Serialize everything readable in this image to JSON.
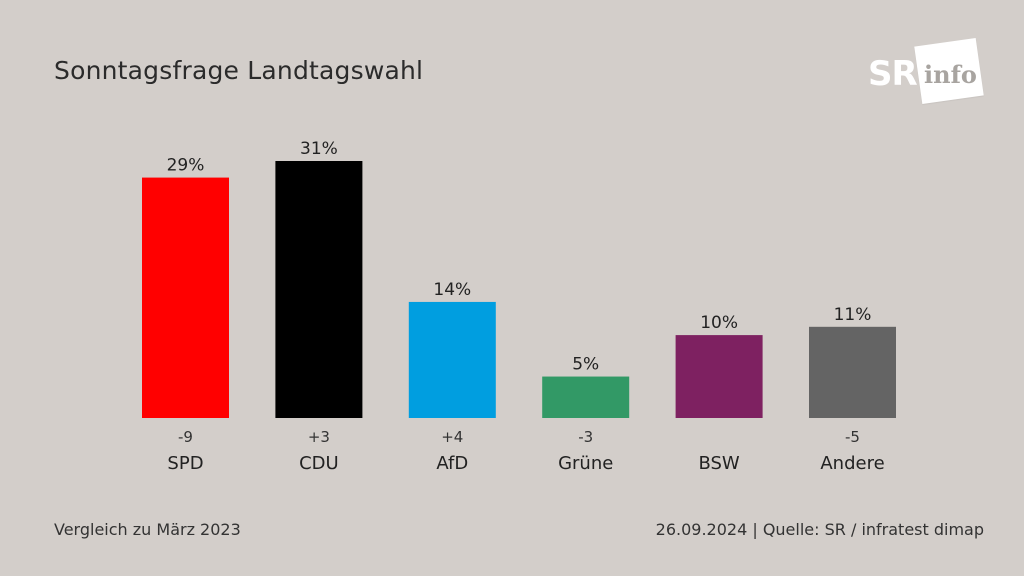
{
  "header": {
    "title": "Sonntagsfrage Landtagswahl"
  },
  "logo": {
    "sr": "SR",
    "info": "info"
  },
  "footer": {
    "left": "Vergleich zu März 2023",
    "right": "26.09.2024 | Quelle: SR / infratest dimap"
  },
  "chart_data": {
    "type": "bar",
    "title": "Sonntagsfrage Landtagswahl",
    "categories": [
      "SPD",
      "CDU",
      "AfD",
      "Grüne",
      "BSW",
      "Andere"
    ],
    "values": [
      29,
      31,
      14,
      5,
      10,
      11
    ],
    "value_labels": [
      "29%",
      "31%",
      "14%",
      "5%",
      "10%",
      "11%"
    ],
    "changes": [
      "-9",
      "+3",
      "+4",
      "-3",
      "",
      "-5"
    ],
    "colors": [
      "#ff0000",
      "#000000",
      "#009ee0",
      "#329966",
      "#7e2161",
      "#646464"
    ],
    "ylim": [
      0,
      31
    ],
    "grid": false,
    "legend": "none"
  }
}
